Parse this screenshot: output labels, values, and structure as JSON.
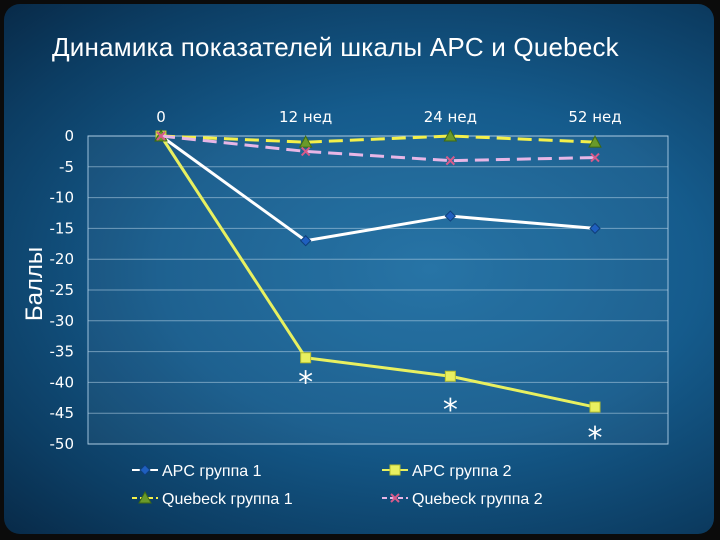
{
  "title": "Динамика показателей шкалы APC и Quebeck",
  "chart_data": {
    "type": "line",
    "title": "Динамика показателей шкалы APC и Quebeck",
    "xlabel": "",
    "ylabel": "Баллы",
    "categories": [
      "0",
      "12 нед",
      "24 нед",
      "52 нед"
    ],
    "ylim": [
      -50,
      0
    ],
    "yticks": [
      0,
      -5,
      -10,
      -15,
      -20,
      -25,
      -30,
      -35,
      -40,
      -45,
      -50
    ],
    "y_tick_labels": [
      "0",
      "-5",
      "-10",
      "-15",
      "-20",
      "-25",
      "-30",
      "-35",
      "-40",
      "-45",
      "-50"
    ],
    "x_axis_position": "top",
    "grid": "horizontal",
    "legend_position": "bottom",
    "series": [
      {
        "name": "APC группа 1",
        "values": [
          0,
          -17,
          -13,
          -15
        ],
        "color": "#ffffff",
        "marker_color": "#1f5fbf",
        "marker": "diamond",
        "dashed": false
      },
      {
        "name": "APC группа 2",
        "values": [
          0,
          -36,
          -39,
          -44
        ],
        "color": "#e8f060",
        "marker_color": "#e8f060",
        "marker": "square",
        "dashed": false
      },
      {
        "name": "Quebeck группа 1",
        "values": [
          0,
          -1,
          0,
          -1
        ],
        "color": "#f4f04a",
        "marker_color": "#6a9a2a",
        "marker": "triangle",
        "dashed": true
      },
      {
        "name": "Quebeck группа 2",
        "values": [
          0,
          -2.5,
          -4,
          -3.5
        ],
        "color": "#e7b6e6",
        "marker_color": "#d85a8a",
        "marker": "x",
        "dashed": true
      }
    ],
    "annotations": [
      {
        "text": "*",
        "x": "12 нед",
        "y": -40
      },
      {
        "text": "*",
        "x": "24 нед",
        "y": -44.5
      },
      {
        "text": "*",
        "x": "52 нед",
        "y": -49
      }
    ]
  }
}
